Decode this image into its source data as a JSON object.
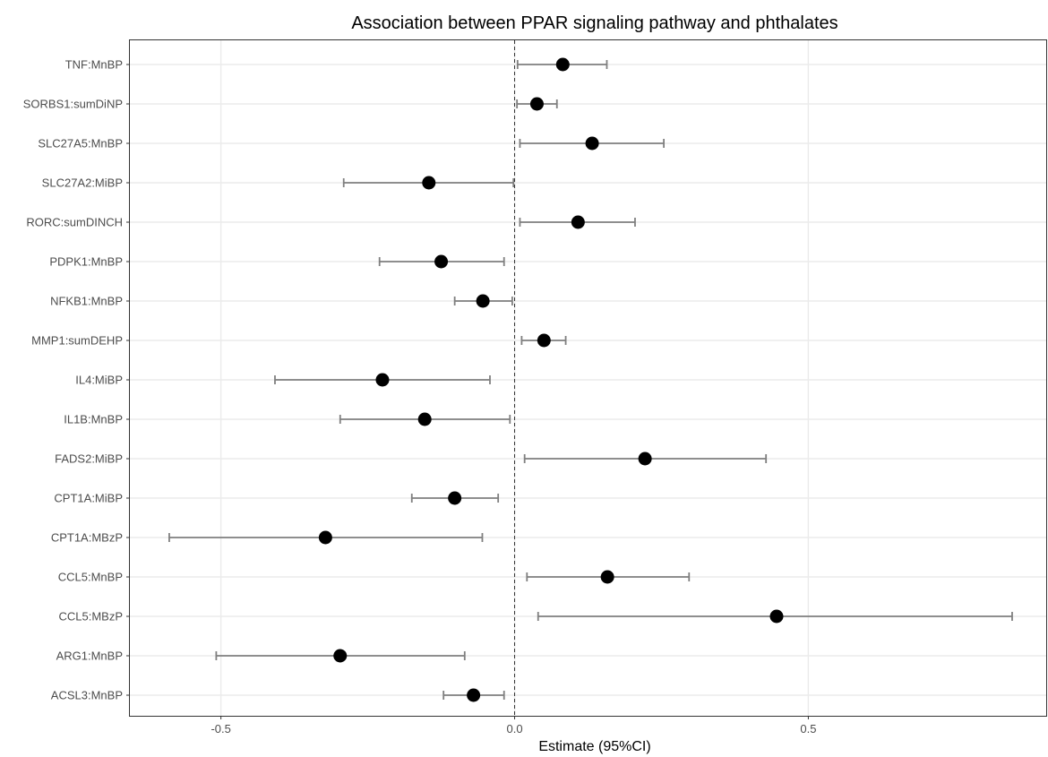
{
  "chart_data": {
    "type": "forest",
    "title": "Association between PPAR signaling pathway and phthalates",
    "xlabel": "Estimate (95%CI)",
    "ylabel": "",
    "xlim": [
      -0.655,
      0.905
    ],
    "x_ticks": [
      -0.5,
      0.0,
      0.5
    ],
    "x_tick_labels": [
      "-0.5",
      "0.0",
      "0.5"
    ],
    "reference_line": 0,
    "grid": true,
    "point_color": "#000000",
    "errorbar_color": "#7f7f7f",
    "rows": [
      {
        "label": "TNF:MnBP",
        "estimate": 0.082,
        "lower": 0.005,
        "upper": 0.157
      },
      {
        "label": "SORBS1:sumDiNP",
        "estimate": 0.038,
        "lower": 0.004,
        "upper": 0.072
      },
      {
        "label": "SLC27A5:MnBP",
        "estimate": 0.132,
        "lower": 0.009,
        "upper": 0.254
      },
      {
        "label": "SLC27A2:MiBP",
        "estimate": -0.146,
        "lower": -0.291,
        "upper": -0.002
      },
      {
        "label": "RORC:sumDINCH",
        "estimate": 0.108,
        "lower": 0.009,
        "upper": 0.205
      },
      {
        "label": "PDPK1:MnBP",
        "estimate": -0.125,
        "lower": -0.23,
        "upper": -0.018
      },
      {
        "label": "NFKB1:MnBP",
        "estimate": -0.054,
        "lower": -0.102,
        "upper": -0.004
      },
      {
        "label": "MMP1:sumDEHP",
        "estimate": 0.05,
        "lower": 0.012,
        "upper": 0.087
      },
      {
        "label": "IL4:MiBP",
        "estimate": -0.225,
        "lower": -0.408,
        "upper": -0.042
      },
      {
        "label": "IL1B:MnBP",
        "estimate": -0.153,
        "lower": -0.297,
        "upper": -0.008
      },
      {
        "label": "FADS2:MiBP",
        "estimate": 0.222,
        "lower": 0.017,
        "upper": 0.428
      },
      {
        "label": "CPT1A:MiBP",
        "estimate": -0.102,
        "lower": -0.175,
        "upper": -0.028
      },
      {
        "label": "CPT1A:MBzP",
        "estimate": -0.322,
        "lower": -0.588,
        "upper": -0.055
      },
      {
        "label": "CCL5:MnBP",
        "estimate": 0.158,
        "lower": 0.021,
        "upper": 0.297
      },
      {
        "label": "CCL5:MBzP",
        "estimate": 0.446,
        "lower": 0.04,
        "upper": 0.847
      },
      {
        "label": "ARG1:MnBP",
        "estimate": -0.297,
        "lower": -0.508,
        "upper": -0.085
      },
      {
        "label": "ACSL3:MnBP",
        "estimate": -0.07,
        "lower": -0.121,
        "upper": -0.018
      }
    ]
  }
}
